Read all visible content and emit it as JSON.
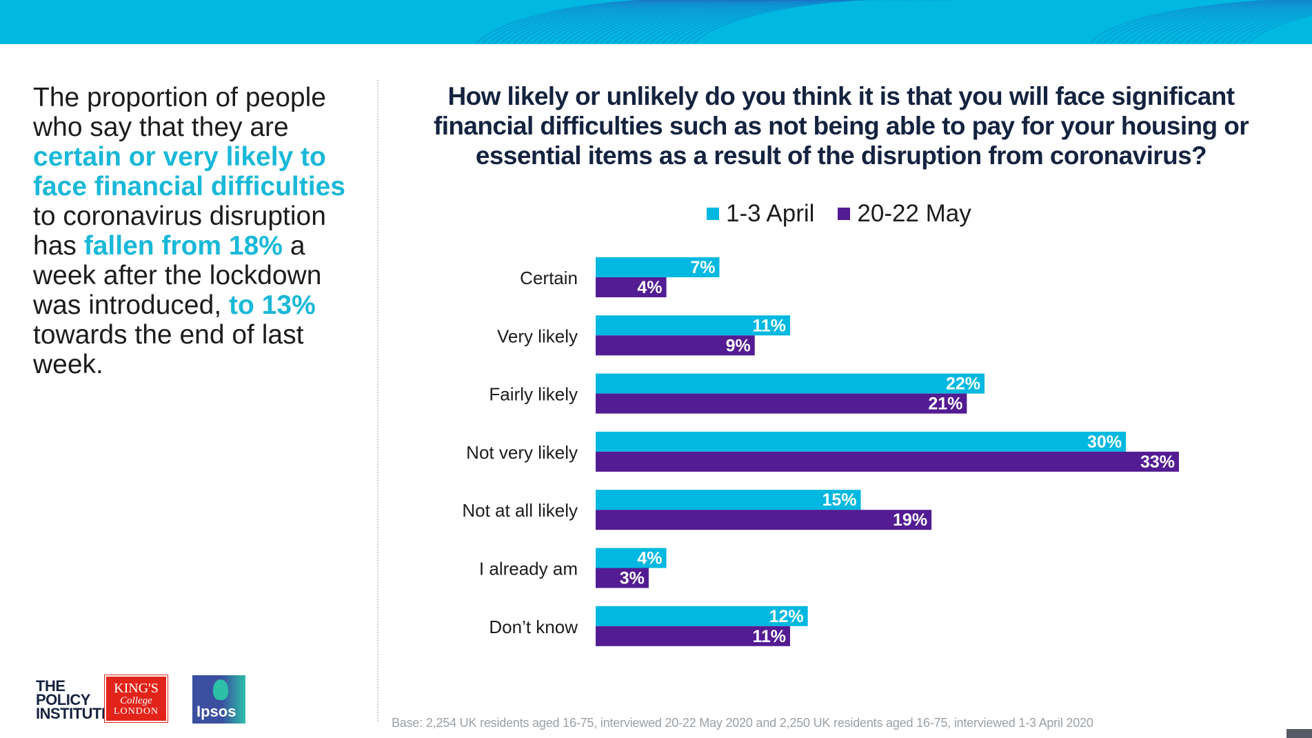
{
  "colors": {
    "accent": "#00b8e0",
    "april": "#00b8e0",
    "may": "#531c93",
    "title": "#14233f"
  },
  "left_panel": {
    "p1": "The proportion of people who say that they are ",
    "h1": "certain or very likely to face financial difficulties",
    "p2": " to coronavirus disruption has ",
    "h2": "fallen from 18%",
    "p3": " a week after the lockdown was introduced, ",
    "h3": "to 13%",
    "p4": " towards the end of last week."
  },
  "logos": {
    "policy": [
      "THE",
      "POLICY",
      "INSTITUTE"
    ],
    "kings": [
      "KING'S",
      "College",
      "LONDON"
    ],
    "ipsos": "Ipsos"
  },
  "footnote": "Base: 2,254 UK residents aged 16-75, interviewed 20-22 May 2020 and 2,250 UK residents aged 16-75, interviewed 1-3 April 2020",
  "chart_data": {
    "type": "bar",
    "orientation": "horizontal",
    "title": "How likely or unlikely do you think it is that you will face significant financial difficulties such as not being able to pay for your housing or essential items as a result of the disruption from coronavirus?",
    "categories": [
      "Certain",
      "Very likely",
      "Fairly likely",
      "Not very likely",
      "Not at all likely",
      "I already am",
      "Don’t know"
    ],
    "series": [
      {
        "name": "1-3 April",
        "color": "#00b8e0",
        "values": [
          7,
          11,
          22,
          30,
          15,
          4,
          12
        ],
        "labels": [
          "7%",
          "11%",
          "22%",
          "30%",
          "15%",
          "4%",
          "12%"
        ]
      },
      {
        "name": "20-22 May",
        "color": "#531c93",
        "values": [
          4,
          9,
          21,
          33,
          19,
          3,
          11
        ],
        "labels": [
          "4%",
          "9%",
          "21%",
          "33%",
          "19%",
          "3%",
          "11%"
        ]
      }
    ],
    "unit": "%",
    "legend_position": "top",
    "grid": false,
    "xlim": [
      0,
      33
    ]
  }
}
